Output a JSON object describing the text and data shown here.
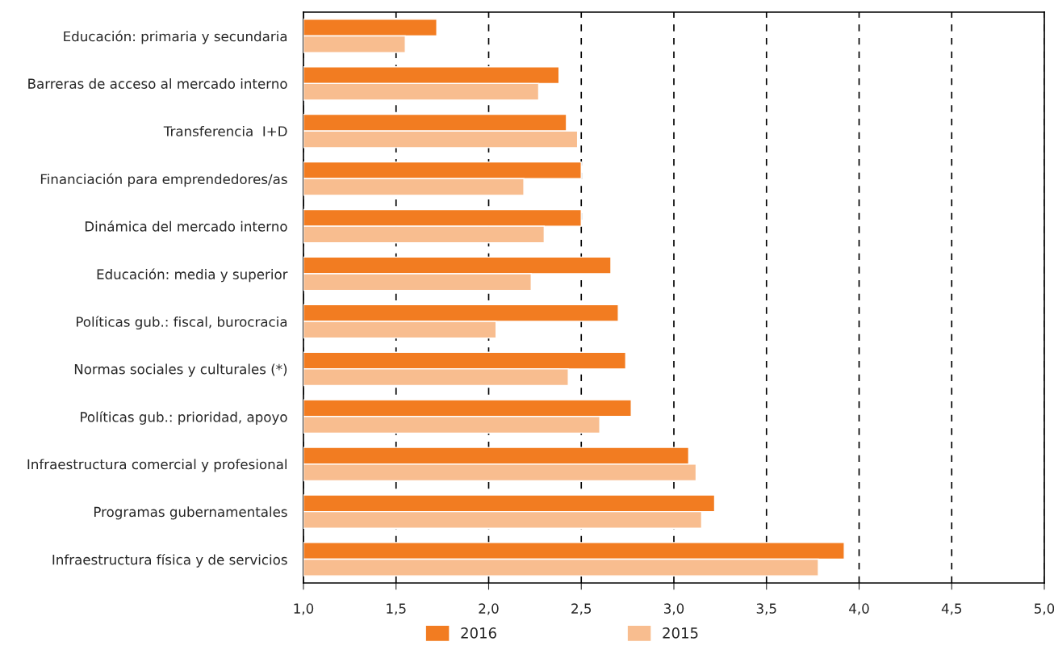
{
  "chart_data": {
    "type": "bar",
    "orientation": "horizontal",
    "categories": [
      "Educación: primaria y secundaria",
      "Barreras de acceso al mercado interno",
      "Transferencia  I+D",
      "Financiación para emprendedores/as",
      "Dinámica del mercado interno",
      "Educación: media y superior",
      "Políticas gub.: fiscal, burocracia",
      "Normas sociales y culturales (*)",
      "Políticas gub.: prioridad, apoyo",
      "Infraestructura comercial y profesional",
      "Programas gubernamentales",
      "Infraestructura física y de servicios"
    ],
    "series": [
      {
        "name": "2016",
        "color": "#f27c21",
        "values": [
          1.72,
          2.38,
          2.42,
          2.5,
          2.5,
          2.66,
          2.7,
          2.74,
          2.77,
          3.08,
          3.22,
          3.92
        ]
      },
      {
        "name": "2015",
        "color": "#f8bd8f",
        "values": [
          1.55,
          2.27,
          2.48,
          2.19,
          2.3,
          2.23,
          2.04,
          2.43,
          2.6,
          3.12,
          3.15,
          3.78
        ]
      }
    ],
    "xlim": [
      1.0,
      5.0
    ],
    "xticks": [
      {
        "value": 1.0,
        "label": "1,0"
      },
      {
        "value": 1.5,
        "label": "1,5"
      },
      {
        "value": 2.0,
        "label": "2,0"
      },
      {
        "value": 2.5,
        "label": "2,5"
      },
      {
        "value": 3.0,
        "label": "3,0"
      },
      {
        "value": 3.5,
        "label": "3,5"
      },
      {
        "value": 4.0,
        "label": "4,0"
      },
      {
        "value": 4.5,
        "label": "4,5"
      },
      {
        "value": 5.0,
        "label": "5,0"
      }
    ],
    "grid": "x",
    "legend": "bottom"
  }
}
